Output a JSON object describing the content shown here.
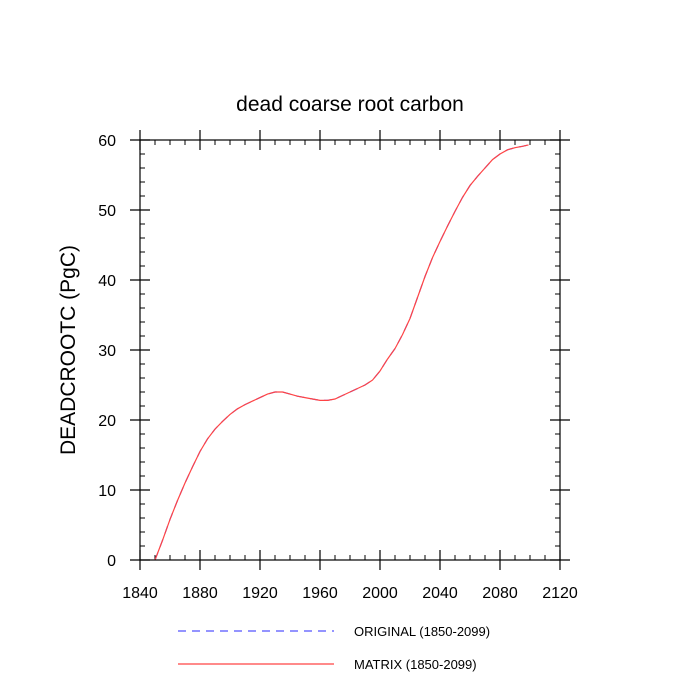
{
  "chart_data": {
    "type": "line",
    "title": "dead coarse root carbon",
    "xlabel": "",
    "ylabel": "DEADCROOTC  (PgC)",
    "xlim": [
      1840,
      2120
    ],
    "ylim": [
      0,
      60
    ],
    "xticks": [
      1840,
      1880,
      1920,
      1960,
      2000,
      2040,
      2080,
      2120
    ],
    "yticks": [
      0,
      10,
      20,
      30,
      40,
      50,
      60
    ],
    "grid": false,
    "legend_position": "bottom",
    "series": [
      {
        "name": "ORIGINAL (1850-2099)",
        "color": "#5555ff",
        "style": "dashed",
        "x": [
          1850,
          1855,
          1860,
          1865,
          1870,
          1875,
          1880,
          1885,
          1890,
          1895,
          1900,
          1905,
          1910,
          1915,
          1920,
          1925,
          1930,
          1935,
          1940,
          1945,
          1950,
          1955,
          1960,
          1965,
          1970,
          1975,
          1980,
          1985,
          1990,
          1995,
          2000,
          2005,
          2010,
          2015,
          2020,
          2025,
          2030,
          2035,
          2040,
          2045,
          2050,
          2055,
          2060,
          2065,
          2070,
          2075,
          2080,
          2085,
          2090,
          2095,
          2099
        ],
        "y": [
          0,
          2.8,
          5.8,
          8.5,
          11.0,
          13.3,
          15.5,
          17.3,
          18.7,
          19.8,
          20.8,
          21.6,
          22.2,
          22.7,
          23.2,
          23.7,
          24.0,
          24.0,
          23.7,
          23.4,
          23.2,
          23.0,
          22.8,
          22.8,
          23.0,
          23.5,
          24.0,
          24.5,
          25.0,
          25.7,
          27.0,
          28.7,
          30.2,
          32.2,
          34.5,
          37.5,
          40.5,
          43.2,
          45.5,
          47.7,
          49.8,
          51.8,
          53.5,
          54.8,
          56.0,
          57.2,
          58.0,
          58.6,
          58.9,
          59.1,
          59.3
        ]
      },
      {
        "name": "MATRIX (1850-2099)",
        "color": "#ff4444",
        "style": "solid",
        "x": [
          1850,
          1855,
          1860,
          1865,
          1870,
          1875,
          1880,
          1885,
          1890,
          1895,
          1900,
          1905,
          1910,
          1915,
          1920,
          1925,
          1930,
          1935,
          1940,
          1945,
          1950,
          1955,
          1960,
          1965,
          1970,
          1975,
          1980,
          1985,
          1990,
          1995,
          2000,
          2005,
          2010,
          2015,
          2020,
          2025,
          2030,
          2035,
          2040,
          2045,
          2050,
          2055,
          2060,
          2065,
          2070,
          2075,
          2080,
          2085,
          2090,
          2095,
          2099
        ],
        "y": [
          0,
          2.8,
          5.8,
          8.5,
          11.0,
          13.3,
          15.5,
          17.3,
          18.7,
          19.8,
          20.8,
          21.6,
          22.2,
          22.7,
          23.2,
          23.7,
          24.0,
          24.0,
          23.7,
          23.4,
          23.2,
          23.0,
          22.8,
          22.8,
          23.0,
          23.5,
          24.0,
          24.5,
          25.0,
          25.7,
          27.0,
          28.7,
          30.2,
          32.2,
          34.5,
          37.5,
          40.5,
          43.2,
          45.5,
          47.7,
          49.8,
          51.8,
          53.5,
          54.8,
          56.0,
          57.2,
          58.0,
          58.6,
          58.9,
          59.1,
          59.3
        ]
      }
    ]
  }
}
